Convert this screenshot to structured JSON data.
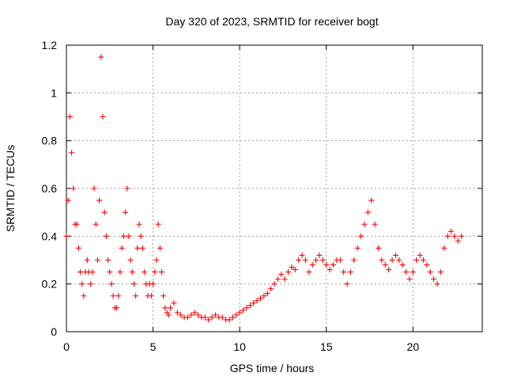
{
  "chart_data": {
    "type": "scatter",
    "title": "Day 320 of 2023, SRMTID for receiver bogt",
    "xlabel": "GPS time / hours",
    "ylabel": "SRMTID / TECUs",
    "xlim": [
      0,
      24
    ],
    "ylim": [
      0,
      1.2
    ],
    "xticks": [
      0,
      5,
      10,
      15,
      20
    ],
    "xtick_labels": [
      "0",
      "5",
      "10",
      "15",
      "20"
    ],
    "yticks": [
      0,
      0.2,
      0.4,
      0.6,
      0.8,
      1.0,
      1.2
    ],
    "ytick_labels": [
      "0",
      "0.2",
      "0.4",
      "0.6",
      "0.8",
      "1",
      "1.2"
    ],
    "grid": true,
    "marker": "+",
    "color": "#ff0000",
    "series": [
      {
        "name": "SRMTID",
        "x": [
          0.0,
          0.1,
          0.2,
          0.3,
          0.4,
          0.5,
          0.6,
          0.7,
          0.8,
          0.9,
          1.0,
          1.1,
          1.2,
          1.3,
          1.4,
          1.5,
          1.6,
          1.7,
          1.8,
          1.9,
          2.0,
          2.1,
          2.2,
          2.3,
          2.4,
          2.5,
          2.6,
          2.7,
          2.8,
          2.9,
          3.0,
          3.1,
          3.2,
          3.3,
          3.4,
          3.5,
          3.6,
          3.7,
          3.8,
          3.9,
          4.0,
          4.1,
          4.2,
          4.3,
          4.4,
          4.5,
          4.6,
          4.7,
          4.8,
          4.9,
          5.0,
          5.1,
          5.2,
          5.3,
          5.4,
          5.5,
          5.6,
          5.7,
          5.8,
          5.9,
          6.0,
          6.2,
          6.4,
          6.6,
          6.8,
          7.0,
          7.2,
          7.4,
          7.6,
          7.8,
          8.0,
          8.2,
          8.4,
          8.6,
          8.8,
          9.0,
          9.2,
          9.4,
          9.6,
          9.8,
          10.0,
          10.2,
          10.4,
          10.6,
          10.8,
          11.0,
          11.2,
          11.4,
          11.6,
          11.8,
          12.0,
          12.2,
          12.4,
          12.6,
          12.8,
          13.0,
          13.2,
          13.4,
          13.6,
          13.8,
          14.0,
          14.2,
          14.4,
          14.6,
          14.8,
          15.0,
          15.2,
          15.4,
          15.6,
          15.8,
          16.0,
          16.2,
          16.4,
          16.6,
          16.8,
          17.0,
          17.2,
          17.4,
          17.6,
          17.8,
          18.0,
          18.2,
          18.4,
          18.6,
          18.8,
          19.0,
          19.2,
          19.4,
          19.6,
          19.8,
          20.0,
          20.2,
          20.4,
          20.6,
          20.8,
          21.0,
          21.2,
          21.4,
          21.6,
          21.8,
          22.0,
          22.2,
          22.4,
          22.6,
          22.8
        ],
        "y": [
          0.4,
          0.55,
          0.9,
          0.75,
          0.6,
          0.45,
          0.45,
          0.35,
          0.25,
          0.2,
          0.15,
          0.25,
          0.3,
          0.25,
          0.2,
          0.25,
          0.6,
          0.45,
          0.3,
          0.55,
          1.15,
          0.9,
          0.5,
          0.4,
          0.3,
          0.25,
          0.2,
          0.15,
          0.1,
          0.1,
          0.15,
          0.25,
          0.35,
          0.4,
          0.5,
          0.6,
          0.4,
          0.3,
          0.25,
          0.2,
          0.15,
          0.35,
          0.45,
          0.4,
          0.35,
          0.25,
          0.2,
          0.15,
          0.2,
          0.15,
          0.2,
          0.25,
          0.3,
          0.45,
          0.35,
          0.25,
          0.15,
          0.1,
          0.08,
          0.07,
          0.1,
          0.12,
          0.08,
          0.07,
          0.06,
          0.06,
          0.07,
          0.08,
          0.07,
          0.06,
          0.06,
          0.05,
          0.06,
          0.07,
          0.06,
          0.06,
          0.05,
          0.05,
          0.06,
          0.07,
          0.08,
          0.09,
          0.1,
          0.11,
          0.12,
          0.13,
          0.14,
          0.15,
          0.16,
          0.18,
          0.2,
          0.22,
          0.24,
          0.22,
          0.25,
          0.27,
          0.26,
          0.3,
          0.32,
          0.3,
          0.25,
          0.28,
          0.3,
          0.32,
          0.3,
          0.28,
          0.26,
          0.28,
          0.3,
          0.3,
          0.25,
          0.2,
          0.25,
          0.3,
          0.35,
          0.4,
          0.45,
          0.5,
          0.55,
          0.45,
          0.35,
          0.3,
          0.28,
          0.26,
          0.3,
          0.32,
          0.3,
          0.28,
          0.25,
          0.22,
          0.25,
          0.3,
          0.32,
          0.3,
          0.28,
          0.25,
          0.22,
          0.2,
          0.25,
          0.35,
          0.4,
          0.42,
          0.4,
          0.38,
          0.4
        ]
      }
    ]
  }
}
